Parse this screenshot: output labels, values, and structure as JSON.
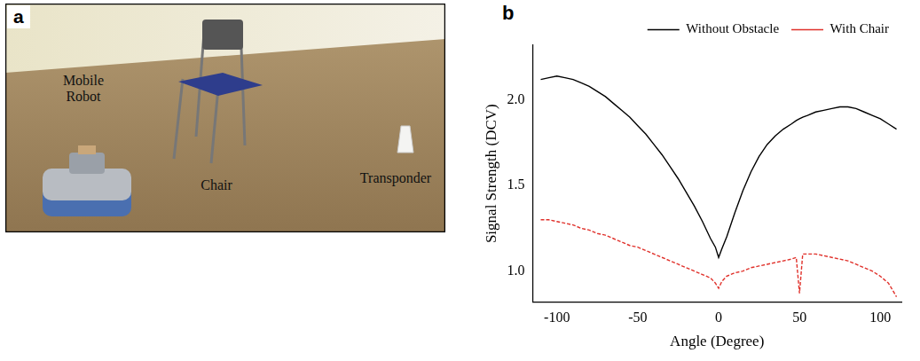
{
  "photo_panel": {
    "letter": "a",
    "labels": [
      "Mobile Robot",
      "Chair",
      "Transponder"
    ]
  },
  "chart_panel_letter": "b",
  "chart_data": {
    "type": "line",
    "x_label": "Angle (Degree)",
    "y_label": "Signal Strength (DCV)",
    "x": [
      -110,
      -105,
      -100,
      -95,
      -90,
      -85,
      -80,
      -75,
      -70,
      -65,
      -60,
      -55,
      -50,
      -45,
      -40,
      -35,
      -30,
      -25,
      -20,
      -15,
      -10,
      -5,
      -2,
      0,
      2,
      5,
      10,
      15,
      20,
      25,
      30,
      35,
      40,
      45,
      48,
      50,
      52,
      55,
      60,
      65,
      70,
      75,
      80,
      85,
      90,
      95,
      100,
      105,
      110
    ],
    "series": [
      {
        "name": "Without Obstacle",
        "color": "#000000",
        "line_style": "solid",
        "values": [
          2.12,
          2.13,
          2.14,
          2.13,
          2.12,
          2.1,
          2.08,
          2.05,
          2.02,
          1.98,
          1.94,
          1.9,
          1.85,
          1.8,
          1.74,
          1.68,
          1.61,
          1.54,
          1.46,
          1.38,
          1.29,
          1.19,
          1.14,
          1.08,
          1.13,
          1.2,
          1.34,
          1.47,
          1.58,
          1.67,
          1.74,
          1.79,
          1.83,
          1.86,
          1.88,
          1.89,
          1.9,
          1.91,
          1.93,
          1.94,
          1.95,
          1.96,
          1.96,
          1.95,
          1.93,
          1.91,
          1.89,
          1.86,
          1.83
        ]
      },
      {
        "name": "With Chair",
        "color": "#e0302a",
        "line_style": "dashed",
        "values": [
          1.3,
          1.3,
          1.29,
          1.28,
          1.27,
          1.25,
          1.24,
          1.22,
          1.21,
          1.19,
          1.17,
          1.15,
          1.14,
          1.12,
          1.1,
          1.08,
          1.06,
          1.04,
          1.02,
          1.0,
          0.98,
          0.96,
          0.93,
          0.9,
          0.94,
          0.97,
          0.99,
          1.0,
          1.02,
          1.03,
          1.04,
          1.05,
          1.06,
          1.07,
          1.08,
          0.87,
          1.1,
          1.1,
          1.1,
          1.09,
          1.08,
          1.07,
          1.06,
          1.04,
          1.02,
          1.0,
          0.97,
          0.93,
          0.85
        ]
      }
    ],
    "xlim": [
      -115,
      113
    ],
    "xticks": [
      -100,
      -50,
      0,
      50,
      100
    ],
    "ylim": [
      0.82,
      2.32
    ],
    "yticks": [
      {
        "value": 1.0,
        "label": "1.0"
      },
      {
        "value": 1.5,
        "label": "1.5"
      },
      {
        "value": 2.0,
        "label": "2.0"
      }
    ],
    "grid": false,
    "legend": "top right"
  }
}
